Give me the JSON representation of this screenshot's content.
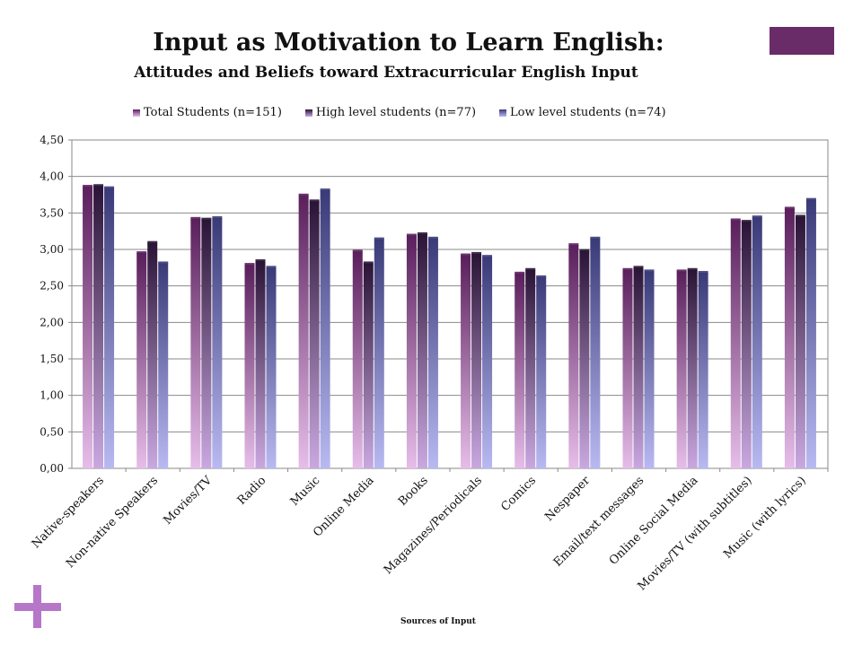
{
  "title": "Input as Motivation to Learn English:",
  "subtitle": "Attitudes and Beliefs toward Extracurricular English Input",
  "chart_data": {
    "type": "bar",
    "categories": [
      "Native-speakers",
      "Non-native Speakers",
      "Movies/TV",
      "Radio",
      "Music",
      "Online Media",
      "Books",
      "Magazines/Periodicals",
      "Comics",
      "Nespaper",
      "Email/text messages",
      "Online Social Media",
      "Movies/TV (with subtitles)",
      "Music (with lyrics)"
    ],
    "series": [
      {
        "name": "Total Students (n=151)",
        "values": [
          3.86,
          2.95,
          3.42,
          2.79,
          3.74,
          2.97,
          3.19,
          2.92,
          2.67,
          3.06,
          2.72,
          2.7,
          3.4,
          3.56
        ]
      },
      {
        "name": "High level students (n=77)",
        "values": [
          3.87,
          3.09,
          3.41,
          2.84,
          3.66,
          2.81,
          3.21,
          2.94,
          2.72,
          2.98,
          2.75,
          2.72,
          3.38,
          3.45
        ]
      },
      {
        "name": "Low level students (n=74)",
        "values": [
          3.84,
          2.81,
          3.43,
          2.75,
          3.81,
          3.14,
          3.15,
          2.9,
          2.62,
          3.15,
          2.7,
          2.68,
          3.44,
          3.68
        ]
      }
    ],
    "y_ticks": [
      "0,00",
      "0,50",
      "1,00",
      "1,50",
      "2,00",
      "2,50",
      "3,00",
      "3,50",
      "4,00",
      "4,50"
    ],
    "ylim": [
      0,
      4.5
    ],
    "xlabel": "Sources of Input",
    "ylabel": "",
    "grid": true,
    "legend_position": "top",
    "colors": {
      "series_top": [
        "#5a1f5c",
        "#2a1436",
        "#3a3a78"
      ],
      "series_bottom": [
        "#e6bde9",
        "#c9a8e0",
        "#b9b9f2"
      ],
      "accent": "#6a2c69",
      "plus": "#b777c8"
    }
  }
}
